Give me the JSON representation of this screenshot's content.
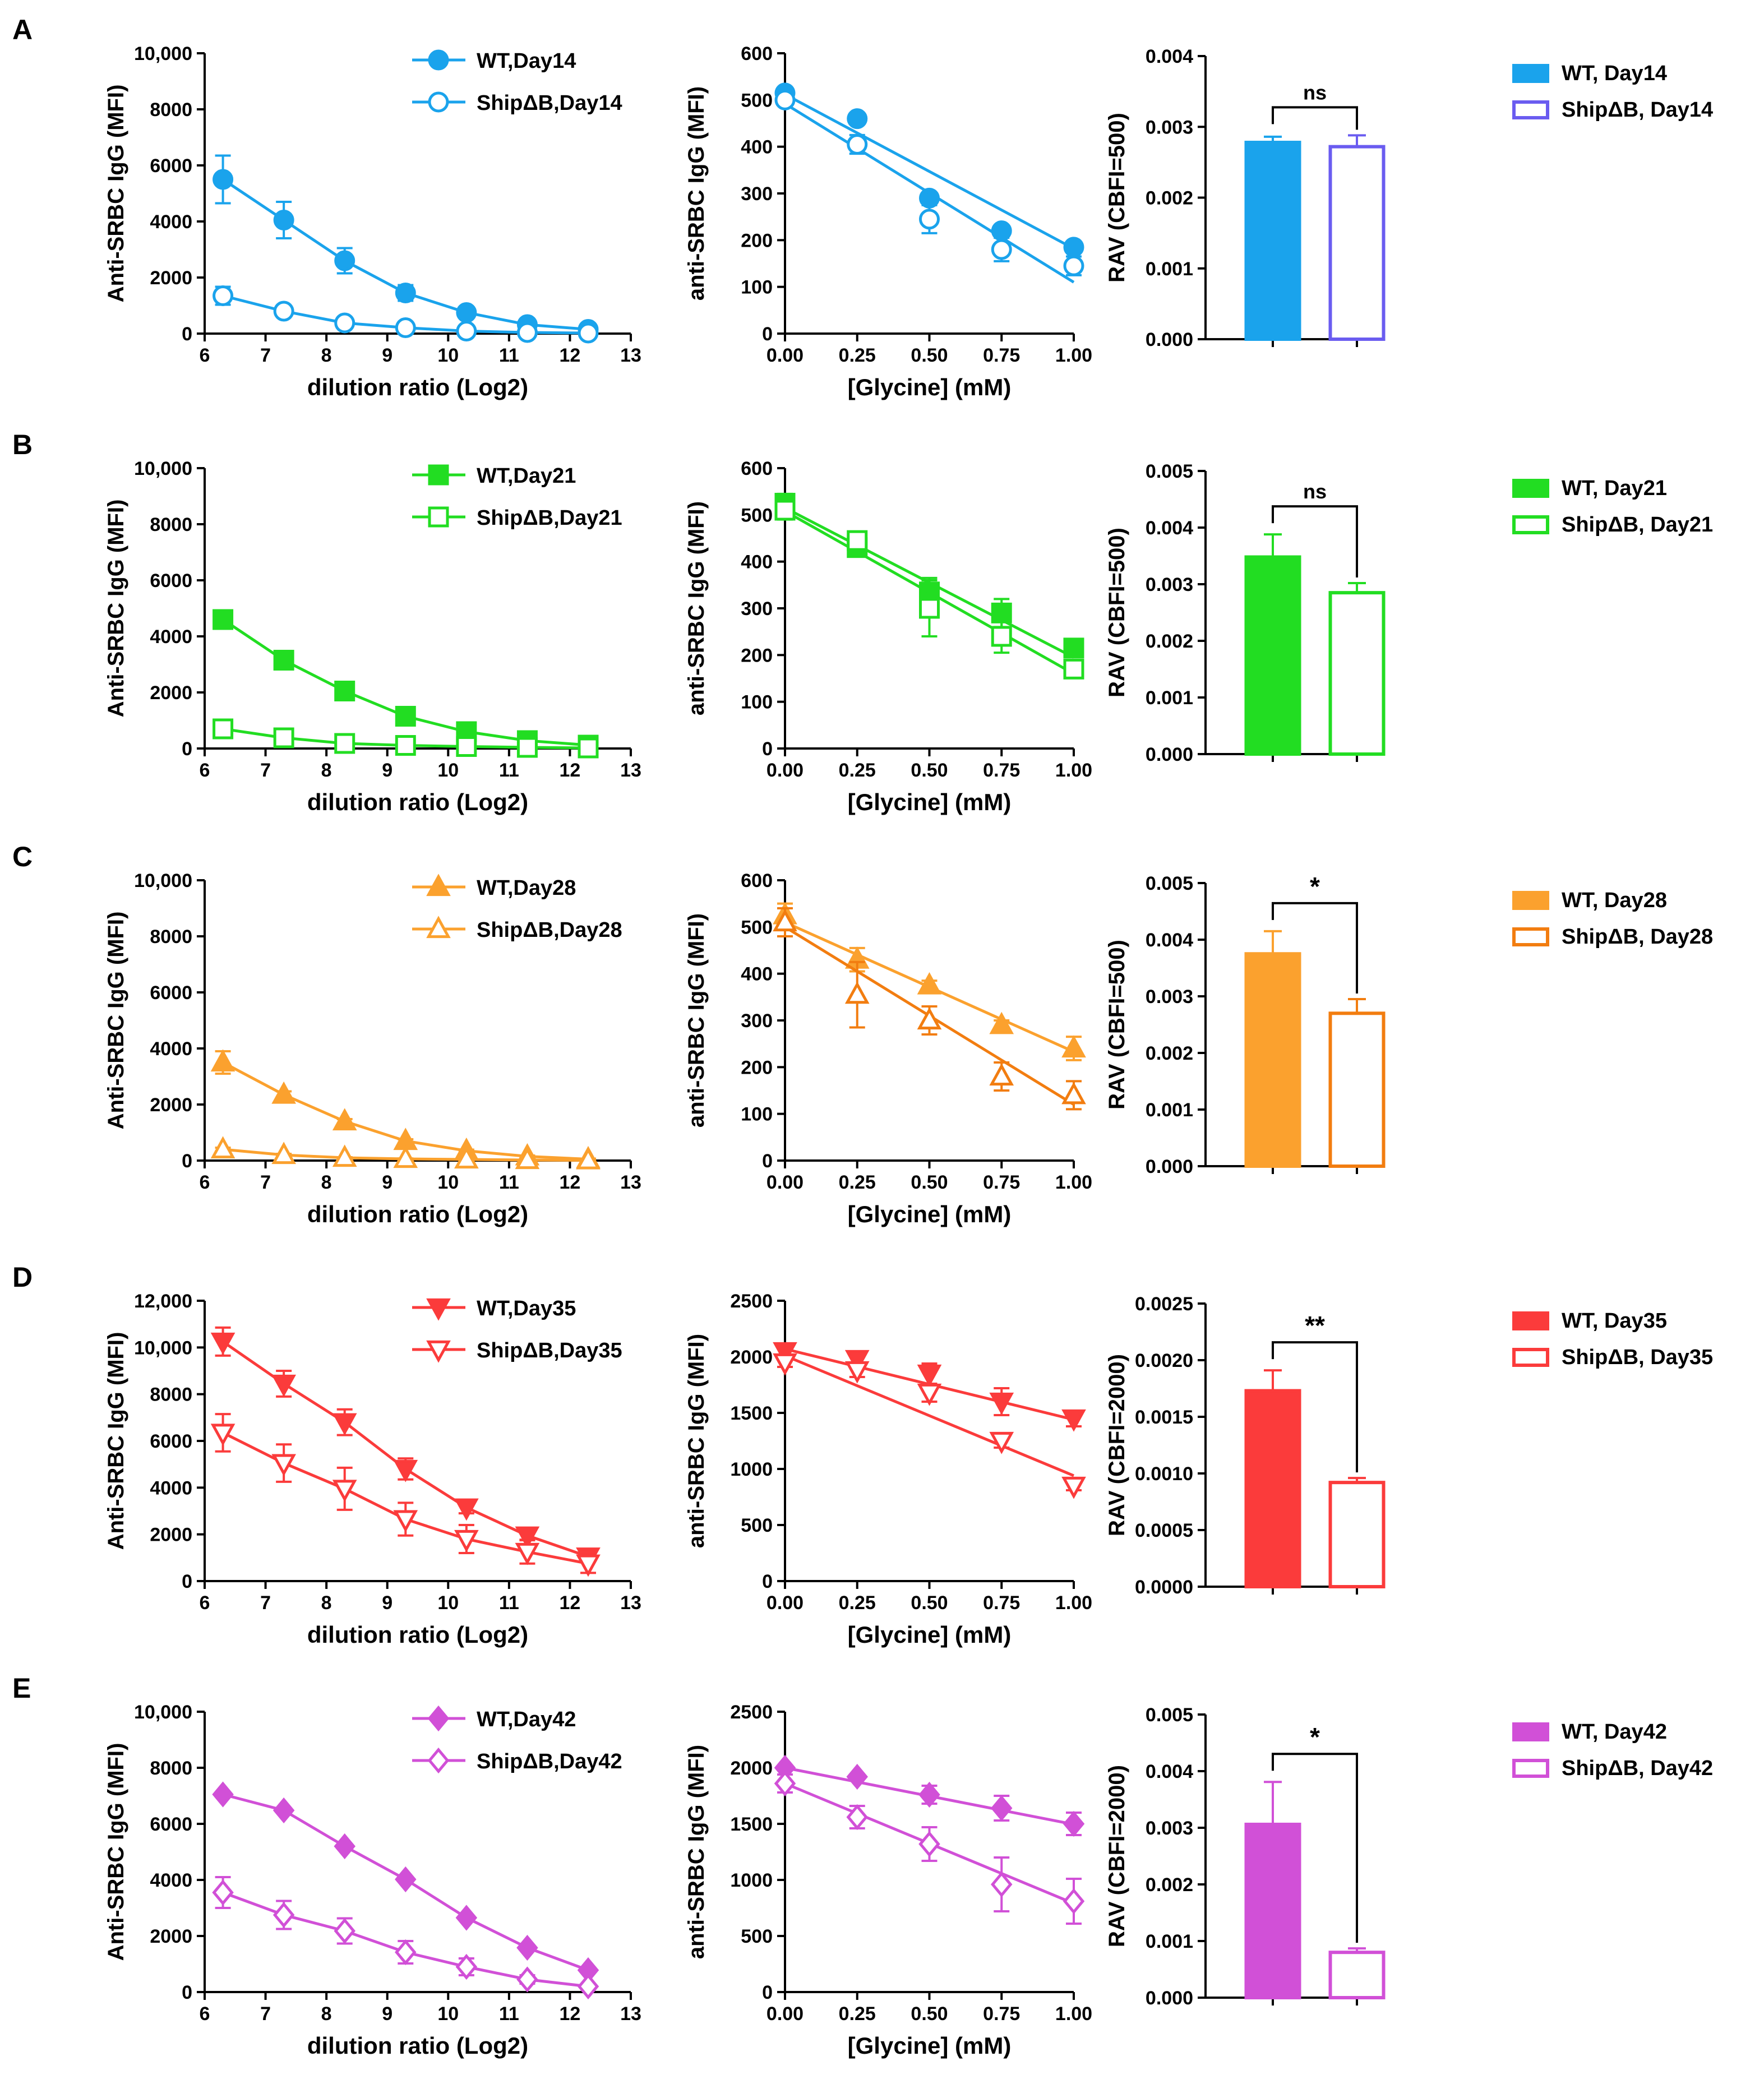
{
  "colors": {
    "A": "#1aa3ec",
    "A_alt": "#6a5cf0",
    "B": "#22dd22",
    "C": "#fba12e",
    "C_alt": "#f27d10",
    "D": "#fb3b3b",
    "E": "#d150d7"
  },
  "chart_data": [
    {
      "panel": "A",
      "type": "line",
      "ylabel": "Anti-SRBC IgG (MFI)",
      "xlabel": "dilution ratio (Log2)",
      "xlim": [
        6,
        13
      ],
      "xticks": [
        "6",
        "7",
        "8",
        "9",
        "10",
        "11",
        "12",
        "13"
      ],
      "ylim": [
        0,
        10000
      ],
      "yticks": [
        "0",
        "2000",
        "4000",
        "6000",
        "8000",
        "10,000"
      ],
      "marker": "circle",
      "x": [
        6.3,
        7.3,
        8.3,
        9.3,
        10.3,
        11.3,
        12.3
      ],
      "series": [
        {
          "name": "WT,Day14",
          "filled": true,
          "values": [
            5500,
            4050,
            2600,
            1450,
            750,
            320,
            150
          ],
          "err": [
            850,
            650,
            450,
            280,
            130,
            90,
            60
          ]
        },
        {
          "name": "ShipΔB,Day14",
          "filled": false,
          "values": [
            1350,
            800,
            380,
            210,
            90,
            40,
            20
          ],
          "err": [
            320,
            120,
            60,
            40,
            20,
            15,
            10
          ]
        }
      ]
    },
    {
      "panel": "A",
      "type": "scatter",
      "ylabel": "anti-SRBC IgG (MFI)",
      "xlabel": "[Glycine] (mM)",
      "xlim": [
        0,
        1
      ],
      "xticks": [
        "0.00",
        "0.25",
        "0.50",
        "0.75",
        "1.00"
      ],
      "ylim": [
        0,
        600
      ],
      "yticks": [
        "0",
        "100",
        "200",
        "300",
        "400",
        "500",
        "600"
      ],
      "marker": "circle",
      "x": [
        0,
        0.25,
        0.5,
        0.75,
        1
      ],
      "series": [
        {
          "name": "WT",
          "filled": true,
          "values": [
            515,
            460,
            290,
            220,
            185
          ],
          "err": [
            10,
            8,
            10,
            12,
            10
          ],
          "fit": [
            512,
            182
          ]
        },
        {
          "name": "ShipΔB",
          "filled": false,
          "values": [
            500,
            405,
            245,
            180,
            145
          ],
          "err": [
            12,
            20,
            30,
            25,
            20
          ],
          "fit": [
            492,
            110
          ]
        }
      ]
    },
    {
      "panel": "A",
      "type": "bar",
      "ylabel": "RAV (CBFI=500)",
      "ylim": [
        0,
        0.004
      ],
      "yticks": [
        "0.000",
        "0.001",
        "0.002",
        "0.003",
        "0.004"
      ],
      "significance": "ns",
      "series": [
        {
          "name": "WT, Day14",
          "filled": true,
          "value": 0.00278,
          "err": 8e-05
        },
        {
          "name": "ShipΔB, Day14",
          "filled": false,
          "value": 0.00272,
          "err": 0.00016
        }
      ]
    },
    {
      "panel": "B",
      "type": "line",
      "ylabel": "Anti-SRBC IgG (MFI)",
      "xlabel": "dilution ratio (Log2)",
      "xlim": [
        6,
        13
      ],
      "xticks": [
        "6",
        "7",
        "8",
        "9",
        "10",
        "11",
        "12",
        "13"
      ],
      "ylim": [
        0,
        10000
      ],
      "yticks": [
        "0",
        "2000",
        "4000",
        "6000",
        "8000",
        "10,000"
      ],
      "marker": "square",
      "x": [
        6.3,
        7.3,
        8.3,
        9.3,
        10.3,
        11.3,
        12.3
      ],
      "series": [
        {
          "name": "WT,Day21",
          "filled": true,
          "values": [
            4600,
            3150,
            2050,
            1150,
            600,
            280,
            120
          ],
          "err": [
            150,
            120,
            100,
            80,
            60,
            40,
            30
          ]
        },
        {
          "name": "ShipΔB,Day21",
          "filled": false,
          "values": [
            700,
            380,
            180,
            110,
            70,
            40,
            20
          ],
          "err": [
            80,
            50,
            30,
            20,
            15,
            10,
            10
          ]
        }
      ]
    },
    {
      "panel": "B",
      "type": "scatter",
      "ylabel": "anti-SRBC IgG (MFI)",
      "xlabel": "[Glycine] (mM)",
      "xlim": [
        0,
        1
      ],
      "xticks": [
        "0.00",
        "0.25",
        "0.50",
        "0.75",
        "1.00"
      ],
      "ylim": [
        0,
        600
      ],
      "yticks": [
        "0",
        "100",
        "200",
        "300",
        "400",
        "500",
        "600"
      ],
      "marker": "square",
      "x": [
        0,
        0.25,
        0.5,
        0.75,
        1
      ],
      "series": [
        {
          "name": "WT",
          "filled": true,
          "values": [
            525,
            430,
            335,
            290,
            215
          ],
          "err": [
            20,
            10,
            30,
            30,
            15
          ],
          "fit": [
            515,
            195
          ]
        },
        {
          "name": "ShipΔB",
          "filled": false,
          "values": [
            510,
            445,
            300,
            240,
            170
          ],
          "err": [
            20,
            15,
            60,
            35,
            10
          ],
          "fit": [
            508,
            160
          ]
        }
      ]
    },
    {
      "panel": "B",
      "type": "bar",
      "ylabel": "RAV (CBFI=500)",
      "ylim": [
        0,
        0.005
      ],
      "yticks": [
        "0.000",
        "0.001",
        "0.002",
        "0.003",
        "0.004",
        "0.005"
      ],
      "significance": "ns",
      "series": [
        {
          "name": "WT, Day21",
          "filled": true,
          "value": 0.00348,
          "err": 0.0004
        },
        {
          "name": "ShipΔB, Day21",
          "filled": false,
          "value": 0.00285,
          "err": 0.00017
        }
      ]
    },
    {
      "panel": "C",
      "type": "line",
      "ylabel": "Anti-SRBC IgG (MFI)",
      "xlabel": "dilution ratio (Log2)",
      "xlim": [
        6,
        13
      ],
      "xticks": [
        "6",
        "7",
        "8",
        "9",
        "10",
        "11",
        "12",
        "13"
      ],
      "ylim": [
        0,
        10000
      ],
      "yticks": [
        "0",
        "2000",
        "4000",
        "6000",
        "8000",
        "10,000"
      ],
      "marker": "triangle",
      "x": [
        6.3,
        7.3,
        8.3,
        9.3,
        10.3,
        11.3,
        12.3
      ],
      "series": [
        {
          "name": "WT,Day28",
          "filled": true,
          "values": [
            3500,
            2350,
            1400,
            700,
            350,
            150,
            50
          ],
          "err": [
            400,
            120,
            80,
            60,
            40,
            30,
            20
          ]
        },
        {
          "name": "ShipΔB,Day28",
          "filled": false,
          "values": [
            400,
            200,
            100,
            60,
            40,
            20,
            10
          ],
          "err": [
            60,
            40,
            20,
            15,
            10,
            10,
            5
          ]
        }
      ]
    },
    {
      "panel": "C",
      "type": "scatter",
      "ylabel": "anti-SRBC IgG (MFI)",
      "xlabel": "[Glycine] (mM)",
      "xlim": [
        0,
        1
      ],
      "xticks": [
        "0.00",
        "0.25",
        "0.50",
        "0.75",
        "1.00"
      ],
      "ylim": [
        0,
        600
      ],
      "yticks": [
        "0",
        "100",
        "200",
        "300",
        "400",
        "500",
        "600"
      ],
      "marker": "triangle",
      "x": [
        0,
        0.25,
        0.5,
        0.75,
        1
      ],
      "series": [
        {
          "name": "WT",
          "filled": true,
          "values": [
            525,
            430,
            375,
            290,
            240
          ],
          "err": [
            25,
            25,
            10,
            10,
            25
          ],
          "fit": [
            510,
            233
          ]
        },
        {
          "name": "ShipΔB",
          "filled": false,
          "values": [
            510,
            355,
            300,
            180,
            140
          ],
          "err": [
            30,
            70,
            30,
            30,
            30
          ],
          "fit": [
            500,
            120
          ]
        }
      ]
    },
    {
      "panel": "C",
      "type": "bar",
      "ylabel": "RAV (CBFI=500)",
      "ylim": [
        0,
        0.005
      ],
      "yticks": [
        "0.000",
        "0.001",
        "0.002",
        "0.003",
        "0.004",
        "0.005"
      ],
      "significance": "*",
      "series": [
        {
          "name": "WT, Day28",
          "filled": true,
          "value": 0.00375,
          "err": 0.0004
        },
        {
          "name": "ShipΔB, Day28",
          "filled": false,
          "value": 0.0027,
          "err": 0.00025
        }
      ]
    },
    {
      "panel": "D",
      "type": "line",
      "ylabel": "Anti-SRBC IgG (MFI)",
      "xlabel": "dilution ratio (Log2)",
      "xlim": [
        6,
        13
      ],
      "xticks": [
        "6",
        "7",
        "8",
        "9",
        "10",
        "11",
        "12",
        "13"
      ],
      "ylim": [
        0,
        12000
      ],
      "yticks": [
        "0",
        "2000",
        "4000",
        "6000",
        "8000",
        "10,000",
        "12,000"
      ],
      "marker": "tri-down",
      "x": [
        6.3,
        7.3,
        8.3,
        9.3,
        10.3,
        11.3,
        12.3
      ],
      "series": [
        {
          "name": "WT,Day35",
          "filled": true,
          "values": [
            10250,
            8450,
            6800,
            4800,
            3150,
            1950,
            1050
          ],
          "err": [
            600,
            550,
            550,
            450,
            250,
            180,
            120
          ]
        },
        {
          "name": "ShipΔB,Day35",
          "filled": false,
          "values": [
            6350,
            5050,
            3950,
            2650,
            1800,
            1250,
            750
          ],
          "err": [
            800,
            800,
            900,
            700,
            600,
            500,
            400
          ]
        }
      ]
    },
    {
      "panel": "D",
      "type": "scatter",
      "ylabel": "anti-SRBC IgG (MFI)",
      "xlabel": "[Glycine] (mM)",
      "xlim": [
        0,
        1
      ],
      "xticks": [
        "0.00",
        "0.25",
        "0.50",
        "0.75",
        "1.00"
      ],
      "ylim": [
        0,
        2500
      ],
      "yticks": [
        "0",
        "500",
        "1000",
        "1500",
        "2000",
        "2500"
      ],
      "marker": "tri-down",
      "x": [
        0,
        0.25,
        0.5,
        0.75,
        1
      ],
      "series": [
        {
          "name": "WT",
          "filled": true,
          "values": [
            2050,
            1980,
            1850,
            1600,
            1450
          ],
          "err": [
            40,
            60,
            90,
            120,
            70
          ],
          "fit": [
            2070,
            1440
          ]
        },
        {
          "name": "ShipΔB",
          "filled": false,
          "values": [
            1950,
            1880,
            1680,
            1250,
            850
          ],
          "err": [
            40,
            60,
            80,
            60,
            40
          ],
          "fit": [
            2010,
            940
          ]
        }
      ]
    },
    {
      "panel": "D",
      "type": "bar",
      "ylabel": "RAV (CBFI=2000)",
      "ylim": [
        0,
        0.0025
      ],
      "yticks": [
        "0.0000",
        "0.0005",
        "0.0010",
        "0.0015",
        "0.0020",
        "0.0025"
      ],
      "significance": "**",
      "series": [
        {
          "name": "WT, Day35",
          "filled": true,
          "value": 0.00173,
          "err": 0.00018
        },
        {
          "name": "ShipΔB, Day35",
          "filled": false,
          "value": 0.00092,
          "err": 4e-05
        }
      ]
    },
    {
      "panel": "E",
      "type": "line",
      "ylabel": "Anti-SRBC IgG (MFI)",
      "xlabel": "dilution ratio (Log2)",
      "xlim": [
        6,
        13
      ],
      "xticks": [
        "6",
        "7",
        "8",
        "9",
        "10",
        "11",
        "12",
        "13"
      ],
      "ylim": [
        0,
        10000
      ],
      "yticks": [
        "0",
        "2000",
        "4000",
        "6000",
        "8000",
        "10,000"
      ],
      "marker": "diamond",
      "x": [
        6.3,
        7.3,
        8.3,
        9.3,
        10.3,
        11.3,
        12.3
      ],
      "series": [
        {
          "name": "WT,Day42",
          "filled": true,
          "values": [
            7050,
            6480,
            5200,
            4020,
            2650,
            1580,
            780
          ],
          "err": [
            60,
            60,
            60,
            60,
            60,
            60,
            60
          ]
        },
        {
          "name": "ShipΔB,Day42",
          "filled": false,
          "values": [
            3550,
            2750,
            2180,
            1420,
            900,
            450,
            200
          ],
          "err": [
            550,
            500,
            450,
            400,
            300,
            150,
            80
          ]
        }
      ]
    },
    {
      "panel": "E",
      "type": "scatter",
      "ylabel": "anti-SRBC IgG (MFI)",
      "xlabel": "[Glycine] (mM)",
      "xlim": [
        0,
        1
      ],
      "xticks": [
        "0.00",
        "0.25",
        "0.50",
        "0.75",
        "1.00"
      ],
      "ylim": [
        0,
        2500
      ],
      "yticks": [
        "0",
        "500",
        "1000",
        "1500",
        "2000",
        "2500"
      ],
      "marker": "diamond",
      "x": [
        0,
        0.25,
        0.5,
        0.75,
        1
      ],
      "series": [
        {
          "name": "WT",
          "filled": true,
          "values": [
            2000,
            1920,
            1760,
            1640,
            1500
          ],
          "err": [
            20,
            20,
            80,
            110,
            100
          ],
          "fit": [
            2000,
            1495
          ]
        },
        {
          "name": "ShipΔB",
          "filled": false,
          "values": [
            1860,
            1560,
            1320,
            960,
            810
          ],
          "err": [
            80,
            100,
            150,
            240,
            200
          ],
          "fit": [
            1860,
            790
          ]
        }
      ]
    },
    {
      "panel": "E",
      "type": "bar",
      "ylabel": "RAV (CBFI=2000)",
      "ylim": [
        0,
        0.005
      ],
      "yticks": [
        "0.000",
        "0.001",
        "0.002",
        "0.003",
        "0.004",
        "0.005"
      ],
      "significance": "*",
      "series": [
        {
          "name": "WT, Day42",
          "filled": true,
          "value": 0.00306,
          "err": 0.00075
        },
        {
          "name": "ShipΔB, Day42",
          "filled": false,
          "value": 0.0008,
          "err": 7e-05
        }
      ]
    }
  ]
}
